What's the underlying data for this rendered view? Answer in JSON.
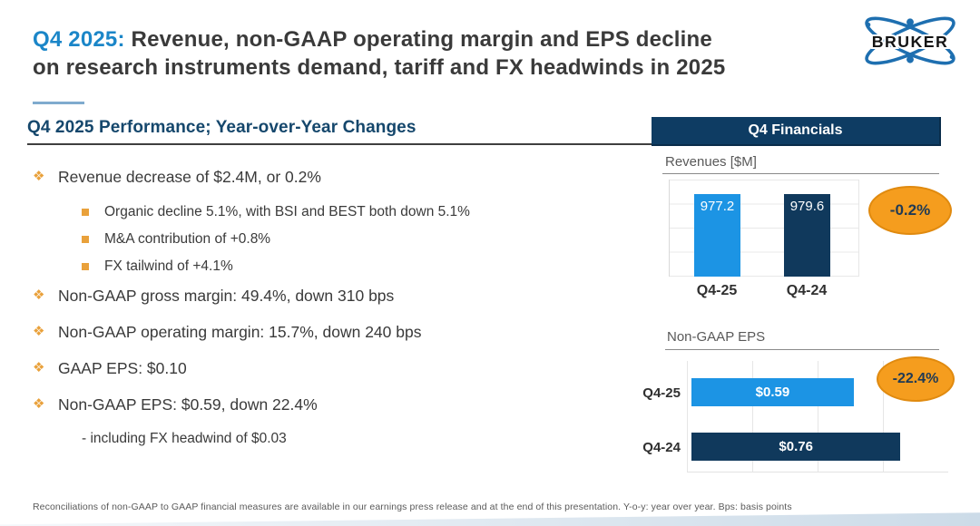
{
  "header": {
    "title_highlight": "Q4 2025:",
    "title_line1": "Revenue, non-GAAP operating margin and EPS decline",
    "title_line2": "on research instruments demand, tariff and FX headwinds in 2025",
    "logo_text": "BRUKER"
  },
  "section": {
    "heading": "Q4 2025 Performance; Year-over-Year Changes",
    "banner_label": "Q4 Financials"
  },
  "bullets": {
    "items": [
      {
        "level": 1,
        "text": "Revenue decrease of $2.4M, or 0.2%"
      },
      {
        "level": 2,
        "text": "Organic decline 5.1%, with BSI and BEST both down 5.1%"
      },
      {
        "level": 2,
        "text": "M&A contribution of +0.8%"
      },
      {
        "level": 2,
        "text": "FX tailwind of +4.1%"
      },
      {
        "level": 1,
        "text": "Non-GAAP gross margin: 49.4%, down 310 bps"
      },
      {
        "level": 1,
        "text": "Non-GAAP operating margin: 15.7%, down 240 bps"
      },
      {
        "level": 1,
        "text": "GAAP EPS: $0.10"
      },
      {
        "level": 1,
        "text": "Non-GAAP EPS: $0.59, down 22.4%"
      },
      {
        "level": 3,
        "text": "- including FX headwind of $0.03"
      }
    ]
  },
  "chart_data": [
    {
      "type": "bar",
      "orientation": "vertical",
      "title": "Revenues [$M]",
      "categories": [
        "Q4-25",
        "Q4-24"
      ],
      "values": [
        977.2,
        979.6
      ],
      "value_labels": [
        "977.2",
        "979.6"
      ],
      "bar_colors": [
        "#1c94e4",
        "#10395c"
      ],
      "ylim": [
        0,
        1150
      ],
      "grid": true,
      "legend": "none",
      "badge": {
        "label": "-0.2%",
        "color": "#f59d1e"
      }
    },
    {
      "type": "bar",
      "orientation": "horizontal",
      "title": "Non-GAAP EPS",
      "categories": [
        "Q4-25",
        "Q4-24"
      ],
      "values": [
        0.59,
        0.76
      ],
      "value_labels": [
        "$0.59",
        "$0.76"
      ],
      "bar_colors": [
        "#1c94e4",
        "#10395c"
      ],
      "xlim": [
        0,
        0.95
      ],
      "grid": true,
      "legend": "none",
      "badge": {
        "label": "-22.4%",
        "color": "#f59d1e"
      }
    }
  ],
  "footnote": "Reconciliations of non-GAAP to GAAP financial measures are available in our earnings press release and at the end of this presentation. Y-o-y: year over year. Bps: basis points",
  "colors": {
    "accent_blue": "#1b86c8",
    "navy_banner": "#0e3c63",
    "heading_navy": "#15476c",
    "bar_light_blue": "#1c94e4",
    "bar_navy": "#10395c",
    "badge_orange": "#f59d1e",
    "bullet_gold": "#e9a13b",
    "text_dark": "#3a3a3a",
    "text_gray": "#595959"
  }
}
